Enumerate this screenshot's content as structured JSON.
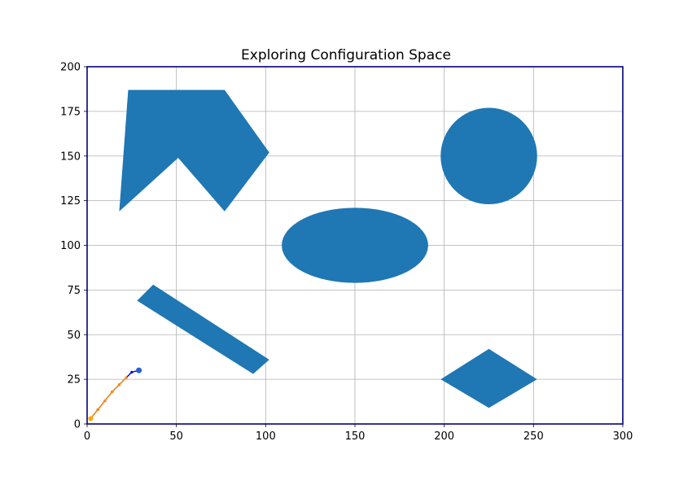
{
  "chart_data": {
    "type": "scatter",
    "title": "Exploring Configuration Space",
    "xlabel": "",
    "ylabel": "",
    "xlim": [
      0,
      300
    ],
    "ylim": [
      0,
      200
    ],
    "xticks": [
      0,
      50,
      100,
      150,
      200,
      250,
      300
    ],
    "yticks": [
      0,
      25,
      50,
      75,
      100,
      125,
      150,
      175,
      200
    ],
    "grid": true,
    "obstacle_color": "#1f77b4",
    "frame_color": "#000080",
    "obstacles": [
      {
        "kind": "polygon",
        "points": [
          [
            23,
            187
          ],
          [
            77,
            187
          ],
          [
            102,
            152
          ],
          [
            77,
            119
          ],
          [
            51,
            149
          ],
          [
            18,
            119
          ]
        ]
      },
      {
        "kind": "polygon",
        "points": [
          [
            37,
            78
          ],
          [
            102,
            36
          ],
          [
            93,
            28
          ],
          [
            28,
            69
          ]
        ]
      },
      {
        "kind": "polygon",
        "points": [
          [
            225,
            42
          ],
          [
            252,
            25
          ],
          [
            225,
            9
          ],
          [
            198,
            25
          ]
        ]
      },
      {
        "kind": "ellipse",
        "center": [
          150,
          100
        ],
        "rx": 41,
        "ry": 21
      },
      {
        "kind": "circle",
        "center": [
          225,
          150
        ],
        "r": 27
      }
    ],
    "tree_edges": [
      {
        "color": "#0000cc",
        "points": [
          [
            2,
            3
          ],
          [
            6,
            8
          ],
          [
            10,
            13
          ],
          [
            14,
            18
          ],
          [
            18,
            22
          ],
          [
            22,
            26
          ],
          [
            25,
            29
          ],
          [
            29,
            30
          ]
        ]
      },
      {
        "color": "#ff8c00",
        "points": [
          [
            2,
            3
          ],
          [
            6,
            8
          ],
          [
            10,
            13
          ],
          [
            14,
            18
          ],
          [
            18,
            22
          ],
          [
            22,
            26
          ]
        ]
      }
    ],
    "start": {
      "point": [
        2,
        3
      ],
      "color": "#ffa500"
    },
    "goal": {
      "point": [
        29,
        30
      ],
      "color": "#2a5fd0"
    }
  }
}
